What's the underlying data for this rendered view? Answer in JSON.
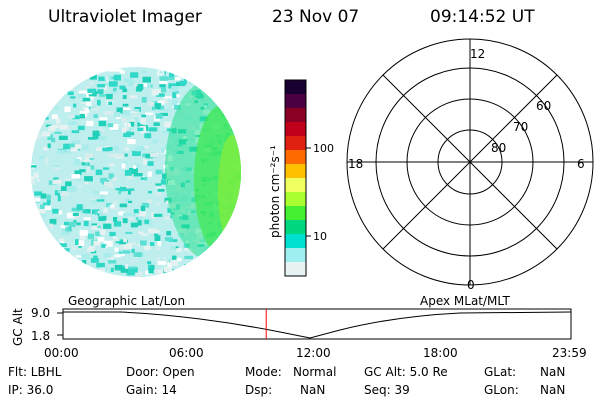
{
  "header": {
    "title": "Ultraviolet Imager",
    "date": "23 Nov 07",
    "time": "09:14:52 UT"
  },
  "colorbar": {
    "unit_label": "photon cm⁻²s⁻¹",
    "ticks": [
      "100",
      "10"
    ],
    "colors": [
      "#1a0030",
      "#4a0040",
      "#8a0025",
      "#c0001a",
      "#e02010",
      "#ff6a00",
      "#ffc000",
      "#f0ff60",
      "#aaff30",
      "#44ee30",
      "#00d880",
      "#00e0d0",
      "#9ef0f0",
      "#e8f4f4"
    ]
  },
  "polar_grid": {
    "mlt_labels": {
      "top": "12",
      "left": "18",
      "right": "6",
      "bottom": "0"
    },
    "lat_labels": [
      "60",
      "70",
      "80"
    ]
  },
  "altitude_plot": {
    "left_title": "Geographic Lat/Lon",
    "right_title": "Apex MLat/MLT",
    "y_label": "GC Alt",
    "y_ticks": [
      "9.0",
      "1.8"
    ],
    "x_ticks": [
      "00:00",
      "06:00",
      "12:00",
      "18:00",
      "23:59"
    ],
    "current_time_fraction": 0.4
  },
  "info": {
    "filter": "Flt: LBHL",
    "ip": "IP: 36.0",
    "door": "Door: Open",
    "gain": "Gain: 14",
    "mode_label": "Mode:",
    "mode_value": "Normal",
    "dsp_label": "Dsp:",
    "dsp_value": "NaN",
    "gc_alt": "GC Alt: 5.0 Re",
    "seq": "Seq: 39",
    "glat_label": "GLat:",
    "glat_value": "NaN",
    "glon_label": "GLon:",
    "glon_value": "NaN"
  }
}
